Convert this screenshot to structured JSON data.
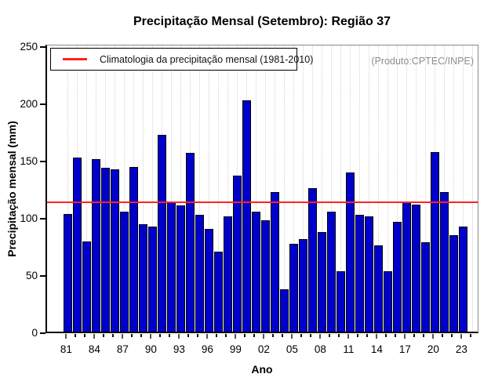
{
  "chart_data": {
    "type": "bar",
    "title": "Precipitação Mensal (Setembro): Região 37",
    "xlabel": "Ano",
    "ylabel": "Precipitação mensal (mm)",
    "ylim": [
      0,
      250
    ],
    "yticks": [
      0,
      50,
      100,
      150,
      200,
      250
    ],
    "grid": true,
    "legend_position": "top-left",
    "legend_label": "Climatologia da precipitação mensal (1981-2010)",
    "annotation": "(Produto:CPTEC/INPE)",
    "climatology_value": 112,
    "x_tick_labels": [
      "81",
      "84",
      "87",
      "90",
      "93",
      "96",
      "99",
      "02",
      "05",
      "08",
      "11",
      "14",
      "17",
      "20",
      "23"
    ],
    "years": [
      1981,
      1982,
      1983,
      1984,
      1985,
      1986,
      1987,
      1988,
      1989,
      1990,
      1991,
      1992,
      1993,
      1994,
      1995,
      1996,
      1997,
      1998,
      1999,
      2000,
      2001,
      2002,
      2003,
      2004,
      2005,
      2006,
      2007,
      2008,
      2009,
      2010,
      2011,
      2012,
      2013,
      2014,
      2015,
      2016,
      2017,
      2018,
      2019,
      2020,
      2021,
      2022,
      2023
    ],
    "values": [
      103,
      152,
      79,
      151,
      143,
      142,
      105,
      144,
      94,
      92,
      172,
      114,
      110,
      156,
      102,
      90,
      70,
      101,
      136,
      202,
      105,
      97,
      122,
      37,
      77,
      81,
      125,
      87,
      105,
      53,
      139,
      102,
      101,
      75,
      53,
      96,
      114,
      111,
      78,
      157,
      122,
      84,
      92
    ],
    "colors": {
      "bar_fill": "#0000CD",
      "bar_border": "#000000",
      "climatology_line": "#FF2222",
      "grid_line": "#D2D2D2",
      "annotation_text": "#8E8E8E"
    }
  }
}
